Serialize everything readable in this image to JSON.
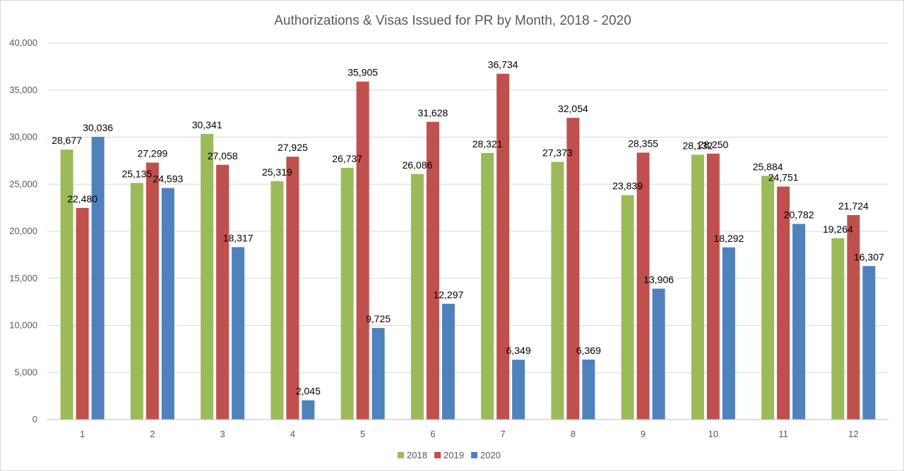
{
  "chart_data": {
    "type": "bar",
    "title": "Authorizations & Visas Issued for PR by Month, 2018 - 2020",
    "xlabel": "",
    "ylabel": "",
    "categories": [
      "1",
      "2",
      "3",
      "4",
      "5",
      "6",
      "7",
      "8",
      "9",
      "10",
      "11",
      "12"
    ],
    "y_ticks": [
      "0",
      "5,000",
      "10,000",
      "15,000",
      "20,000",
      "25,000",
      "30,000",
      "35,000",
      "40,000"
    ],
    "ylim": [
      0,
      40000
    ],
    "y_step": 5000,
    "grid": true,
    "legend_position": "bottom",
    "series": [
      {
        "name": "2018",
        "color": "#9bbb59",
        "values": [
          28677,
          25135,
          30341,
          25319,
          26737,
          26086,
          28321,
          27373,
          23839,
          28132,
          25884,
          19264
        ],
        "labels": [
          "28,677",
          "25,135",
          "30,341",
          "25,319",
          "26,737",
          "26,086",
          "28,321",
          "27,373",
          "23,839",
          "28,132",
          "25,884",
          "19,264"
        ]
      },
      {
        "name": "2019",
        "color": "#c0504d",
        "values": [
          22480,
          27299,
          27058,
          27925,
          35905,
          31628,
          36734,
          32054,
          28355,
          28250,
          24751,
          21724
        ],
        "labels": [
          "22,480",
          "27,299",
          "27,058",
          "27,925",
          "35,905",
          "31,628",
          "36,734",
          "32,054",
          "28,355",
          "28,250",
          "24,751",
          "21,724"
        ]
      },
      {
        "name": "2020",
        "color": "#4f81bd",
        "values": [
          30036,
          24593,
          18317,
          2045,
          9725,
          12297,
          6349,
          6369,
          13906,
          18292,
          20782,
          16307
        ],
        "labels": [
          "30,036",
          "24,593",
          "18,317",
          "2,045",
          "9,725",
          "12,297",
          "6,349",
          "6,369",
          "13,906",
          "18,292",
          "20,782",
          "16,307"
        ]
      }
    ]
  }
}
